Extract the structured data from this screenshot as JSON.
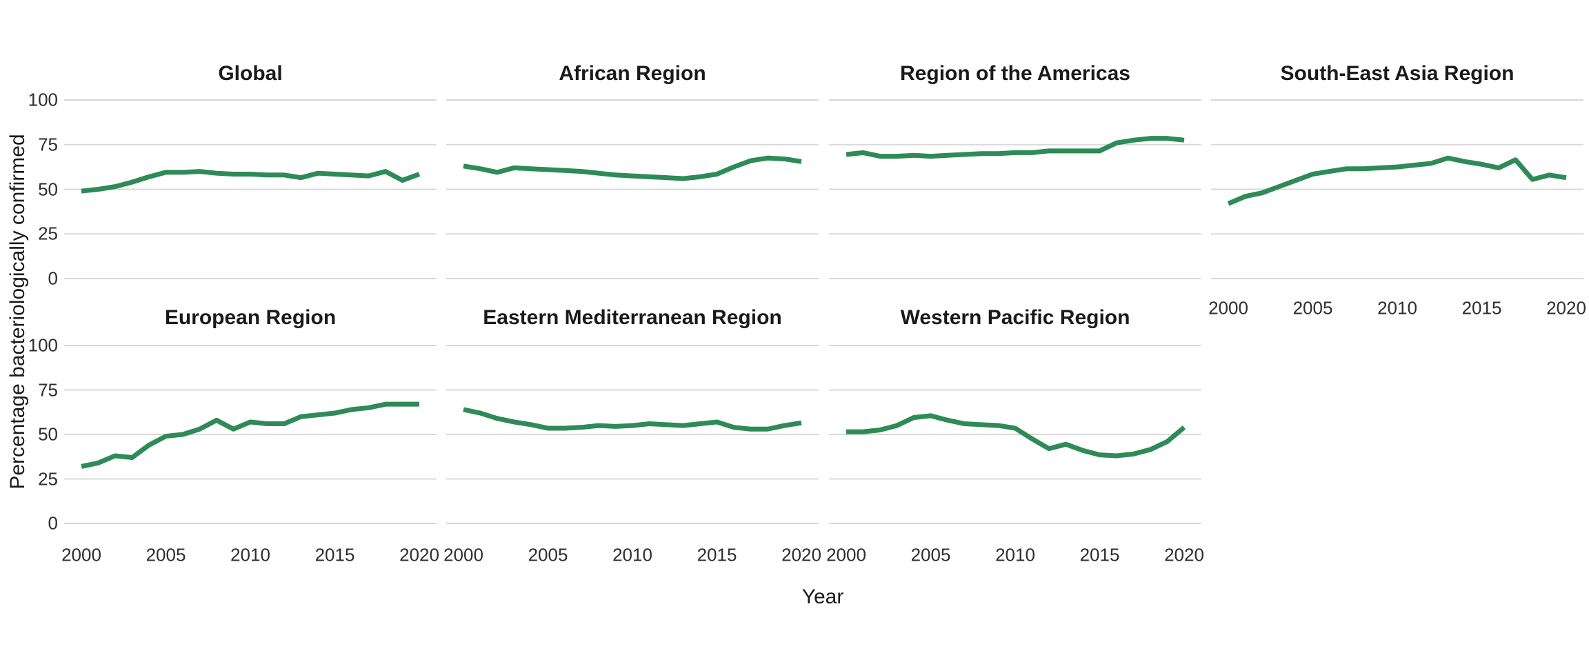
{
  "figure": {
    "y_axis_title": "Percentage bacteriologically confirmed",
    "x_axis_title": "Year",
    "colors": {
      "line": "#2e8b57",
      "gridline": "#d9d9d9",
      "tick_text": "#2e2e2e",
      "title_text": "#1a1a1a",
      "background": "#ffffff"
    }
  },
  "chart_data": {
    "type": "line",
    "layout": "facet-grid-2-rows-4-cols",
    "grid": "horizontal-only",
    "legend": "none",
    "xlabel": "Year",
    "ylabel": "Percentage bacteriologically confirmed",
    "ylim": [
      0,
      100
    ],
    "y_ticks": [
      100,
      75,
      50,
      25,
      0
    ],
    "x_ticks": [
      2000,
      2005,
      2010,
      2015,
      2020
    ],
    "x": [
      2000,
      2001,
      2002,
      2003,
      2004,
      2005,
      2006,
      2007,
      2008,
      2009,
      2010,
      2011,
      2012,
      2013,
      2014,
      2015,
      2016,
      2017,
      2018,
      2019,
      2020
    ],
    "line_color": "#2e8b57",
    "series": [
      {
        "name": "Global",
        "values": [
          49,
          50,
          51.5,
          54,
          57,
          59.5,
          59.5,
          60,
          59,
          58.5,
          58.5,
          58,
          58,
          56.5,
          59,
          58.5,
          58,
          57.5,
          60,
          55,
          58.5
        ]
      },
      {
        "name": "African Region",
        "values": [
          63,
          61.5,
          59.5,
          62,
          61.5,
          61,
          60.5,
          60,
          59,
          58,
          57.5,
          57,
          56.5,
          56,
          57,
          58.5,
          62.5,
          66,
          67.5,
          67,
          65.5
        ]
      },
      {
        "name": "Region of the Americas",
        "values": [
          69.5,
          70.5,
          68.5,
          68.5,
          69,
          68.5,
          69,
          69.5,
          70,
          70,
          70.5,
          70.5,
          71.5,
          71.5,
          71.5,
          71.5,
          76,
          77.5,
          78.5,
          78.5,
          77.5
        ]
      },
      {
        "name": "South-East Asia Region",
        "values": [
          42,
          46,
          48,
          51.5,
          55,
          58.5,
          60,
          61.5,
          61.5,
          62,
          62.5,
          63.5,
          64.5,
          67.5,
          65.5,
          64,
          62,
          66.5,
          55.5,
          58,
          56.5
        ]
      },
      {
        "name": "European Region",
        "values": [
          32,
          34,
          38,
          37,
          44,
          49,
          50,
          53,
          58,
          53,
          57,
          56,
          56,
          60,
          61,
          62,
          64,
          65,
          67,
          67,
          67
        ]
      },
      {
        "name": "Eastern Mediterranean Region",
        "values": [
          64,
          62,
          59,
          57,
          55.5,
          53.5,
          53.5,
          54,
          55,
          54.5,
          55,
          56,
          55.5,
          55,
          56,
          57,
          54,
          53,
          53,
          55,
          56.5
        ]
      },
      {
        "name": "Western Pacific Region",
        "values": [
          51.5,
          51.5,
          52.5,
          55,
          59.5,
          60.5,
          58,
          56,
          55.5,
          55,
          53.5,
          47.5,
          42,
          44.5,
          41,
          38.5,
          38,
          39,
          41.5,
          46,
          54
        ]
      }
    ]
  }
}
